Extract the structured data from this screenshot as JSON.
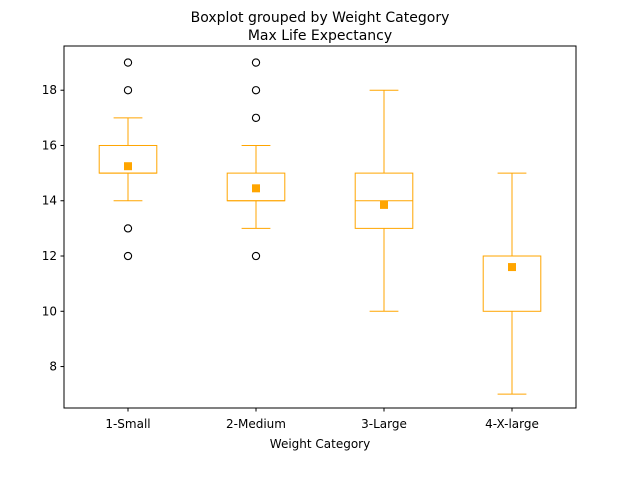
{
  "chart_data": {
    "type": "boxplot",
    "title": "Boxplot grouped by Weight Category",
    "subtitle": "Max Life Expectancy",
    "xlabel": "Weight Category",
    "ylabel": "",
    "ylim": [
      6.5,
      19.6
    ],
    "yticks": [
      8,
      10,
      12,
      14,
      16,
      18
    ],
    "grid": false,
    "box_color": "#FFA500",
    "mean_color": "#FFA500",
    "outlier_color": "#000000",
    "categories": [
      "1-Small",
      "2-Medium",
      "3-Large",
      "4-X-large"
    ],
    "boxes": [
      {
        "category": "1-Small",
        "whisker_low": 14,
        "q1": 15,
        "median": 15,
        "q3": 16,
        "whisker_high": 17,
        "mean": 15.25,
        "outliers": [
          19,
          18,
          13,
          12
        ]
      },
      {
        "category": "2-Medium",
        "whisker_low": 13,
        "q1": 14,
        "median": 14,
        "q3": 15,
        "whisker_high": 16,
        "mean": 14.45,
        "outliers": [
          19,
          18,
          17,
          12
        ]
      },
      {
        "category": "3-Large",
        "whisker_low": 10,
        "q1": 13,
        "median": 14,
        "q3": 15,
        "whisker_high": 18,
        "mean": 13.85,
        "outliers": []
      },
      {
        "category": "4-X-large",
        "whisker_low": 7,
        "q1": 10,
        "median": 12,
        "q3": 12,
        "whisker_high": 15,
        "mean": 11.6,
        "outliers": []
      }
    ]
  }
}
